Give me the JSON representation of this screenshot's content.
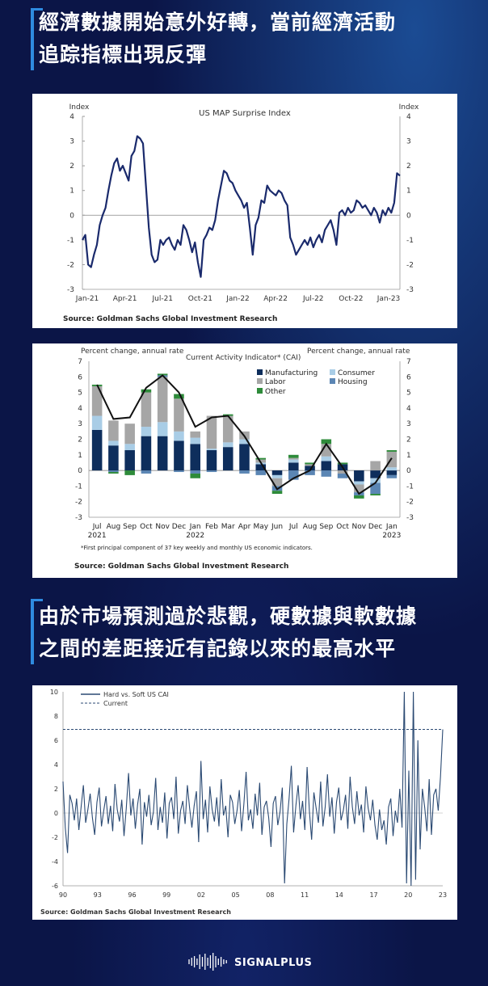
{
  "headline1": {
    "line1": "經濟數據開始意外好轉，當前經濟活動",
    "line2": "追踪指標出現反彈"
  },
  "headline2": {
    "line1": "由於市場預測過於悲觀，硬數據與軟數據",
    "line2": "之間的差距接近有記錄以來的最高水平"
  },
  "brand": {
    "name": "SIGNALPLUS"
  },
  "colors": {
    "background": "#0b1547",
    "accent": "#2f8be0",
    "line": "#1a2a6c",
    "manufacturing": "#0e2e5c",
    "consumer": "#a9cde6",
    "labor": "#a6a6a6",
    "housing": "#5b86b4",
    "other": "#2e8b3a"
  },
  "chart_data": [
    {
      "type": "line",
      "title": "US MAP Surprise Index",
      "ylabel_left": "Index",
      "ylabel_right": "Index",
      "ylim": [
        -3,
        4
      ],
      "yticks": [
        "4",
        "3",
        "2",
        "1",
        "0",
        "-1",
        "-2",
        "-3"
      ],
      "xtick_labels": [
        "Jan-21",
        "Apr-21",
        "Jul-21",
        "Oct-21",
        "Jan-22",
        "Apr-22",
        "Jul-22",
        "Oct-22",
        "Jan-23"
      ],
      "source": "Source: Goldman Sachs Global Investment Research",
      "series": [
        {
          "x": [
            0,
            1,
            2,
            3,
            4,
            5,
            6,
            7,
            8,
            9,
            10,
            11,
            12,
            13,
            14,
            15,
            16,
            17,
            18,
            19,
            20,
            21,
            22,
            23,
            24,
            25,
            26,
            27,
            28,
            29,
            30,
            31,
            32,
            33,
            34,
            35,
            36,
            37,
            38,
            39,
            40,
            41,
            42,
            43,
            44,
            45,
            46,
            47,
            48,
            49,
            50,
            51,
            52,
            53,
            54,
            55,
            56,
            57,
            58,
            59,
            60,
            61,
            62,
            63,
            64,
            65,
            66,
            67,
            68,
            69,
            70,
            71,
            72,
            73,
            74,
            75,
            76,
            77,
            78,
            79,
            80,
            81,
            82,
            83,
            84,
            85,
            86,
            87,
            88,
            89,
            90,
            91,
            92,
            93,
            94,
            95,
            96,
            97,
            98,
            99,
            100,
            101,
            102,
            103,
            104,
            105,
            106,
            107,
            108,
            109,
            110
          ],
          "y": [
            -1.0,
            -0.8,
            -2.0,
            -2.1,
            -1.6,
            -1.2,
            -0.4,
            0.0,
            0.3,
            1.0,
            1.6,
            2.1,
            2.3,
            1.8,
            2.0,
            1.7,
            1.4,
            2.4,
            2.6,
            3.2,
            3.1,
            2.9,
            1.2,
            -0.5,
            -1.6,
            -1.9,
            -1.8,
            -1.0,
            -1.2,
            -1.0,
            -0.9,
            -1.2,
            -1.4,
            -1.0,
            -1.2,
            -0.4,
            -0.6,
            -1.0,
            -1.5,
            -1.1,
            -1.9,
            -2.5,
            -1.0,
            -0.8,
            -0.5,
            -0.6,
            -0.2,
            0.6,
            1.2,
            1.8,
            1.7,
            1.4,
            1.3,
            1.0,
            0.8,
            0.6,
            0.3,
            0.5,
            -0.5,
            -1.6,
            -0.4,
            -0.1,
            0.6,
            0.5,
            1.2,
            1.0,
            0.9,
            0.8,
            1.0,
            0.9,
            0.6,
            0.4,
            -0.9,
            -1.2,
            -1.6,
            -1.4,
            -1.2,
            -1.0,
            -1.2,
            -0.9,
            -1.3,
            -1.0,
            -0.8,
            -1.1,
            -0.6,
            -0.4,
            -0.2,
            -0.6,
            -1.2,
            0.1,
            0.2,
            0.0,
            0.3,
            0.1,
            0.2,
            0.6,
            0.5,
            0.3,
            0.4,
            0.2,
            0.0,
            0.3,
            0.1,
            -0.3,
            0.2,
            0.0,
            0.3,
            0.1,
            0.5,
            1.7,
            1.6
          ]
        }
      ]
    },
    {
      "type": "bar",
      "title": "Current Activity Indicator* (CAI)",
      "ylabel_left": "Percent change, annual rate",
      "ylabel_right": "Percent change, annual rate",
      "ylim": [
        -3,
        7
      ],
      "yticks": [
        "7",
        "6",
        "5",
        "4",
        "3",
        "2",
        "1",
        "0",
        "-1",
        "-2",
        "-3"
      ],
      "categories": [
        "Jul",
        "Aug",
        "Sep",
        "Oct",
        "Nov",
        "Dec",
        "Jan",
        "Feb",
        "Mar",
        "Apr",
        "May",
        "Jun",
        "Jul",
        "Aug",
        "Sep",
        "Oct",
        "Nov",
        "Dec",
        "Jan"
      ],
      "year_labels": [
        "2021",
        "2022",
        "2023"
      ],
      "footnote": "*First principal component of 37 key weekly and monthly US economic indicators.",
      "source": "Source: Goldman Sachs Global Investment Research",
      "legend": [
        "Manufacturing",
        "Consumer",
        "Labor",
        "Housing",
        "Other"
      ],
      "series": [
        {
          "name": "Manufacturing",
          "values": [
            2.6,
            1.6,
            1.3,
            2.2,
            2.2,
            1.9,
            1.7,
            1.3,
            1.5,
            1.7,
            0.4,
            -0.3,
            0.5,
            0.3,
            0.6,
            0.4,
            -0.7,
            -0.5,
            -0.3
          ]
        },
        {
          "name": "Consumer",
          "values": [
            0.9,
            0.3,
            0.4,
            0.6,
            0.9,
            0.6,
            0.4,
            0.1,
            0.3,
            0.3,
            0.1,
            -0.2,
            0.2,
            0.0,
            0.3,
            0.0,
            -0.2,
            -0.3,
            0.2
          ]
        },
        {
          "name": "Labor",
          "values": [
            1.9,
            1.3,
            1.3,
            2.2,
            2.9,
            2.1,
            0.4,
            2.1,
            1.7,
            0.5,
            0.2,
            -0.5,
            0.1,
            0.1,
            0.8,
            -0.2,
            -0.5,
            0.6,
            1.0
          ]
        },
        {
          "name": "Housing",
          "values": [
            0.0,
            -0.1,
            0.0,
            -0.2,
            0.1,
            -0.1,
            -0.2,
            -0.1,
            0.0,
            -0.2,
            -0.3,
            -0.3,
            -0.6,
            -0.3,
            -0.4,
            -0.3,
            -0.2,
            -0.7,
            -0.2
          ]
        },
        {
          "name": "Other",
          "values": [
            0.1,
            -0.1,
            -0.3,
            0.2,
            0.1,
            0.3,
            -0.3,
            0.0,
            0.1,
            0.0,
            0.1,
            -0.2,
            0.2,
            0.1,
            0.3,
            0.1,
            -0.2,
            -0.1,
            0.1
          ]
        }
      ],
      "line": {
        "name": "CAI",
        "values": [
          5.5,
          3.3,
          3.4,
          5.3,
          6.1,
          5.0,
          2.8,
          3.4,
          3.5,
          2.2,
          0.5,
          -1.2,
          -0.5,
          0.0,
          1.7,
          0.2,
          -1.5,
          -0.8,
          0.8
        ]
      }
    },
    {
      "type": "line",
      "legend": [
        "Hard vs. Soft US CAI",
        "Current"
      ],
      "ylim": [
        -6,
        10
      ],
      "yticks": [
        "10",
        "8",
        "6",
        "4",
        "2",
        "0",
        "-2",
        "-4",
        "-6"
      ],
      "xtick_labels": [
        "90",
        "93",
        "96",
        "99",
        "02",
        "05",
        "08",
        "11",
        "14",
        "17",
        "20",
        "23"
      ],
      "current": 6.9,
      "source": "Source: Goldman Sachs Global Investment Research",
      "series": [
        {
          "name": "Hard vs. Soft US CAI",
          "x_range": [
            1990,
            2023.1
          ],
          "y": [
            2.6,
            -1.2,
            -3.3,
            1.5,
            0.8,
            -0.6,
            1.2,
            -1.4,
            0.5,
            2.3,
            -0.8,
            0.3,
            1.6,
            -0.4,
            -1.8,
            0.9,
            2.1,
            -1.1,
            0.2,
            1.4,
            -0.9,
            0.6,
            -1.5,
            2.4,
            0.3,
            -0.7,
            1.1,
            -1.9,
            0.4,
            3.3,
            -0.2,
            1.2,
            -1.3,
            0.7,
            2.0,
            -2.6,
            0.9,
            -0.3,
            1.5,
            -1.0,
            0.1,
            2.9,
            -1.4,
            0.5,
            -0.8,
            1.7,
            -2.1,
            0.8,
            1.3,
            -0.5,
            3.0,
            -1.7,
            0.2,
            1.0,
            -0.9,
            2.3,
            0.4,
            -1.2,
            0.6,
            1.8,
            -2.4,
            4.3,
            -0.5,
            1.1,
            -1.6,
            2.2,
            0.3,
            -0.7,
            1.3,
            -1.1,
            2.8,
            -0.2,
            0.6,
            -2.0,
            1.5,
            0.9,
            -0.9,
            0.2,
            1.9,
            -1.5,
            0.7,
            3.4,
            -0.6,
            0.3,
            -1.3,
            1.6,
            -0.2,
            2.5,
            -1.8,
            0.5,
            1.0,
            -0.4,
            -2.8,
            0.8,
            1.4,
            -1.0,
            0.1,
            2.1,
            -5.8,
            -0.9,
            1.2,
            3.9,
            -1.6,
            0.6,
            2.3,
            -0.5,
            1.0,
            -1.4,
            3.8,
            0.2,
            -2.2,
            1.7,
            0.4,
            -0.8,
            2.6,
            -1.1,
            0.5,
            3.2,
            -0.3,
            1.3,
            -1.7,
            0.9,
            2.1,
            -0.6,
            0.2,
            1.5,
            -1.3,
            3.0,
            0.5,
            -0.9,
            1.8,
            -0.2,
            0.7,
            -1.6,
            2.2,
            0.4,
            -0.6,
            1.1,
            -1.0,
            -2.2,
            0.3,
            -1.4,
            -0.6,
            -2.6,
            0.5,
            1.2,
            -1.9,
            0.2,
            -0.8,
            2.0,
            -1.2,
            10.0,
            -5.8,
            3.5,
            -6.0,
            10.0,
            -5.5,
            6.0,
            -3.0,
            2.0,
            0.5,
            -1.5,
            2.8,
            -1.8,
            1.5,
            2.0,
            0.2,
            3.0,
            6.9
          ]
        }
      ]
    }
  ]
}
